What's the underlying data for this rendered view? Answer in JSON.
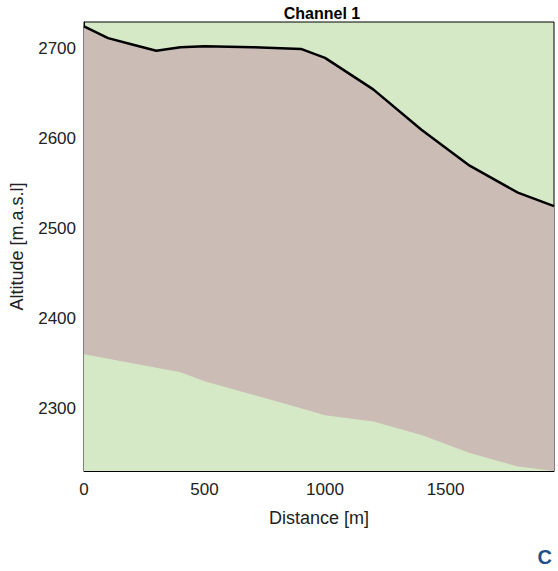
{
  "chart_data": {
    "type": "line",
    "title": "Channel 1",
    "x_label": "Distance [m]",
    "y_label": "Altitude [m.a.s.l]",
    "panel_label": "C",
    "x": [
      0,
      100,
      200,
      300,
      400,
      500,
      700,
      900,
      1000,
      1200,
      1400,
      1600,
      1800,
      1950
    ],
    "series": [
      {
        "color": "#000000",
        "values": [
          2725,
          2712,
          2705,
          2698,
          2702,
          2703,
          2702,
          2700,
          2690,
          2655,
          2610,
          2570,
          2540,
          2525
        ]
      },
      {
        "color": "#d5e9c7",
        "values": [
          2360,
          2355,
          2350,
          2345,
          2340,
          2330,
          2315,
          2300,
          2292,
          2285,
          2270,
          2250,
          2235,
          2230
        ]
      }
    ],
    "xlim": [
      0,
      1950
    ],
    "xticks": [
      0,
      500,
      1000,
      1500
    ],
    "ylim": [
      2230,
      2730
    ],
    "yticks": [
      2300,
      2400,
      2500,
      2600,
      2700
    ],
    "grid": false
  }
}
